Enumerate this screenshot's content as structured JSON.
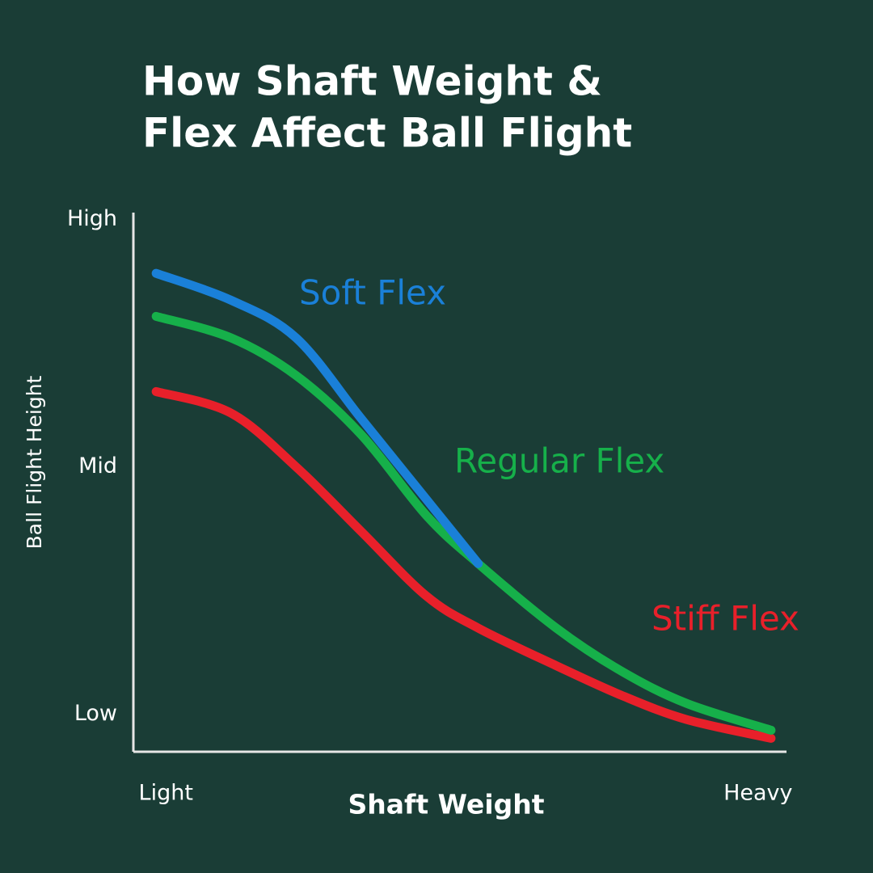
{
  "chart_data": {
    "type": "line",
    "title": [
      "How Shaft Weight &",
      "Flex Affect Ball Flight"
    ],
    "x_label": "Shaft Weight",
    "y_label": "Ball Flight Height",
    "x": [
      3.5,
      15,
      25,
      35,
      45,
      53,
      65,
      75,
      85,
      98
    ],
    "xlim": [
      0,
      100
    ],
    "xticks": [
      {
        "value": 5,
        "label": "Light"
      },
      {
        "value": 96,
        "label": "Heavy"
      }
    ],
    "ylim": [
      0,
      100
    ],
    "yticks": [
      {
        "value": 7,
        "label": "Low"
      },
      {
        "value": 53,
        "label": "Mid"
      },
      {
        "value": 99,
        "label": "High"
      }
    ],
    "series": [
      {
        "name": "Soft Flex",
        "color": "#1a80d8",
        "values": [
          89,
          84,
          77,
          62,
          47,
          35,
          null,
          null,
          null,
          null
        ]
      },
      {
        "name": "Regular Flex",
        "color": "#16b04a",
        "values": [
          81,
          77,
          70,
          59,
          44,
          35,
          23,
          15,
          9,
          4
        ]
      },
      {
        "name": "Stiff Flex",
        "color": "#e8202a",
        "values": [
          67,
          63,
          53,
          41,
          29,
          23,
          16,
          10.5,
          6,
          2.5
        ]
      }
    ]
  }
}
